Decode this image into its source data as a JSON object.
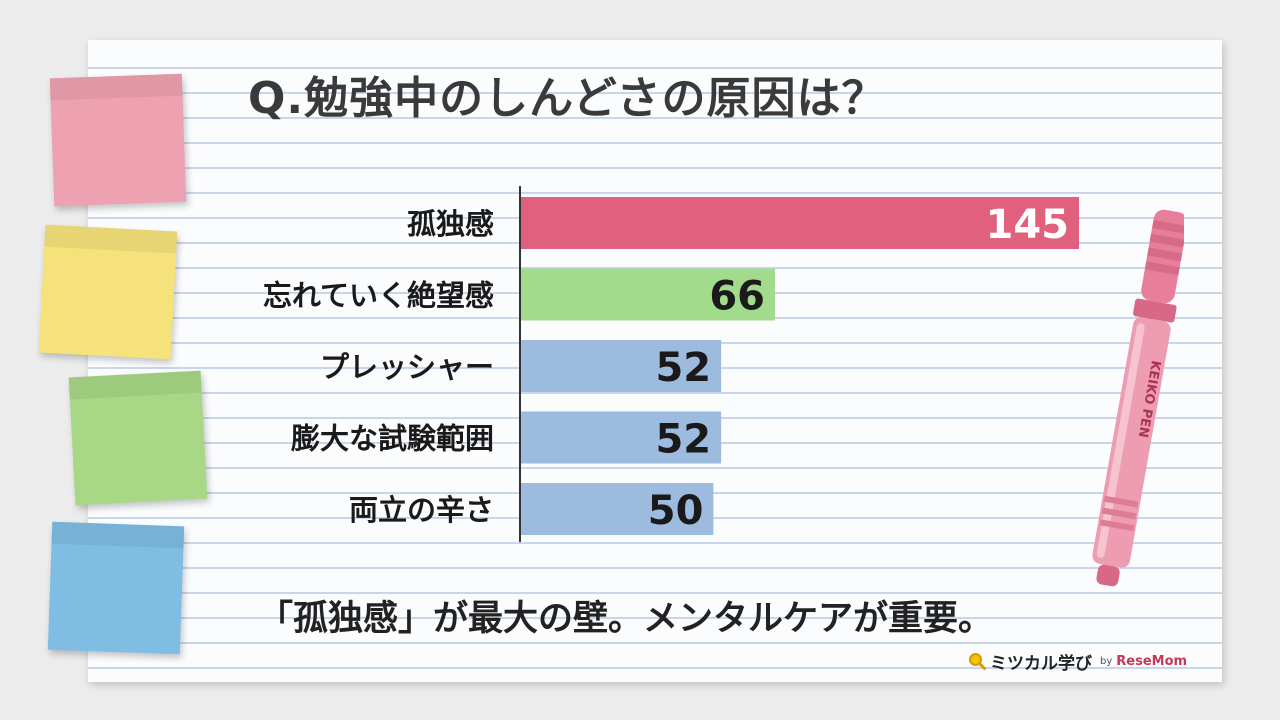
{
  "title": "Q.勉強中のしんどさの原因は？",
  "footer": "「孤独感」が最大の壁。メンタルケアが重要。",
  "brand": {
    "name": "ミツカル学び",
    "by": "by",
    "partner": "ReseMom"
  },
  "pen_label": "KEIKO PEN",
  "chart_data": {
    "type": "bar",
    "orientation": "horizontal",
    "title": "Q.勉強中のしんどさの原因は？",
    "categories": [
      "孤独感",
      "忘れていく絶望感",
      "プレッシャー",
      "膨大な試験範囲",
      "両立の辛さ"
    ],
    "values": [
      145,
      66,
      52,
      52,
      50
    ],
    "colors": [
      "#e0607e",
      "#a3db8c",
      "#9dbbde",
      "#9dbbde",
      "#9dbbde"
    ],
    "label_colors": [
      "#ffffff",
      "#1a1a1a",
      "#1a1a1a",
      "#1a1a1a",
      "#1a1a1a"
    ],
    "xlim": [
      0,
      145
    ],
    "xlabel": "",
    "ylabel": "",
    "grid": false,
    "legend": "none"
  }
}
